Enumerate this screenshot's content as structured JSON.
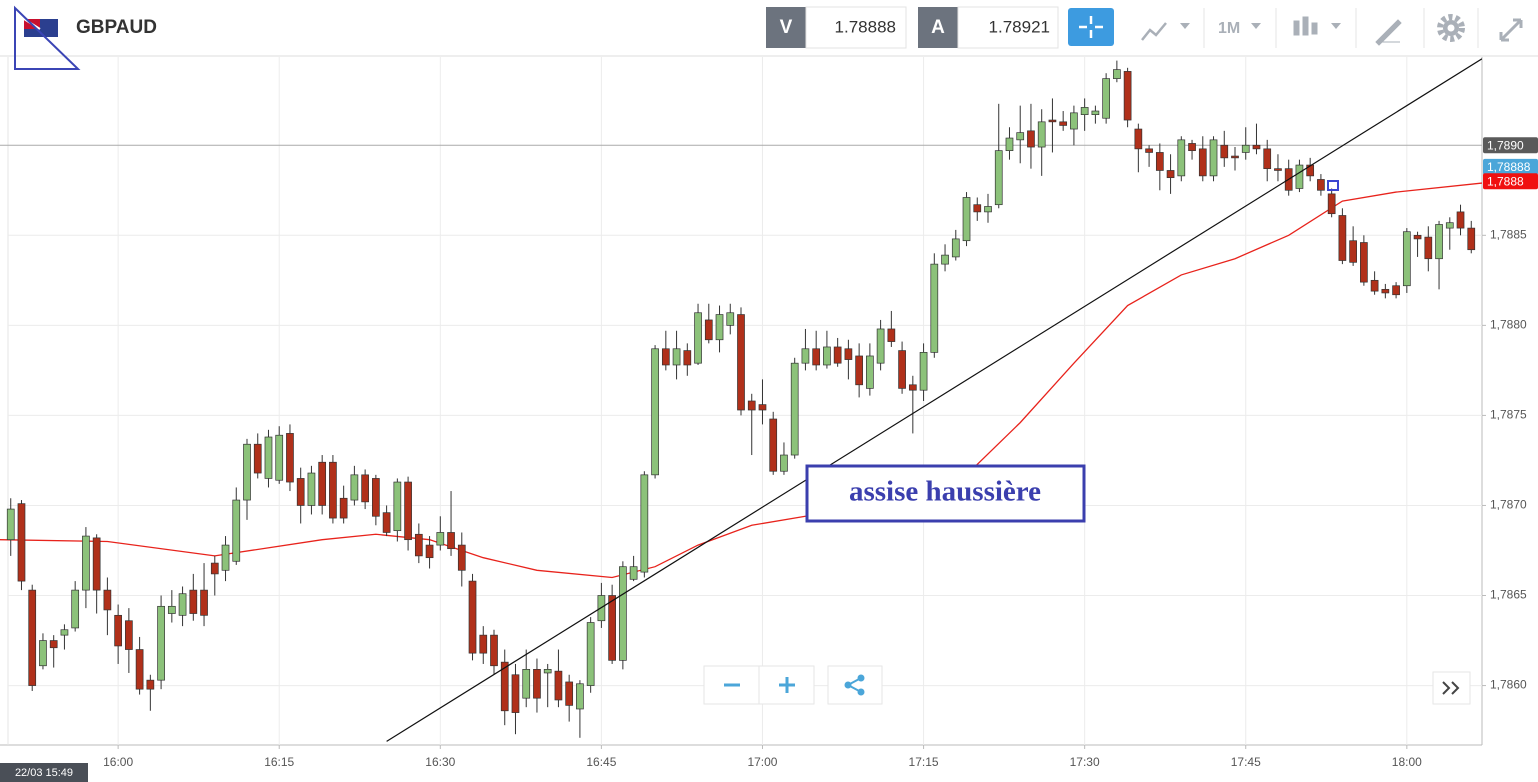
{
  "header": {
    "symbol": "GBPAUD",
    "bid_label": "V",
    "bid": "1.78888",
    "ask_label": "A",
    "ask": "1.78921",
    "timeframe": "1M"
  },
  "chart_data": {
    "type": "candlestick",
    "up_color": "#8cc27a",
    "down_color": "#b0301a",
    "x": [
      "15:50",
      "15:51",
      "15:52",
      "15:53",
      "15:54",
      "15:55",
      "15:56",
      "15:57",
      "15:58",
      "15:59",
      "16:00",
      "16:01",
      "16:02",
      "16:03",
      "16:04",
      "16:05",
      "16:06",
      "16:07",
      "16:08",
      "16:09",
      "16:10",
      "16:11",
      "16:12",
      "16:13",
      "16:14",
      "16:15",
      "16:16",
      "16:17",
      "16:18",
      "16:19",
      "16:20",
      "16:21",
      "16:22",
      "16:23",
      "16:24",
      "16:25",
      "16:26",
      "16:27",
      "16:28",
      "16:29",
      "16:30",
      "16:31",
      "16:32",
      "16:33",
      "16:34",
      "16:35",
      "16:36",
      "16:37",
      "16:38",
      "16:39",
      "16:40",
      "16:41",
      "16:42",
      "16:43",
      "16:44",
      "16:45",
      "16:46",
      "16:47",
      "16:48",
      "16:49",
      "16:50",
      "16:51",
      "16:52",
      "16:53",
      "16:54",
      "16:55",
      "16:56",
      "16:57",
      "16:58",
      "16:59",
      "17:00",
      "17:01",
      "17:02",
      "17:03",
      "17:04",
      "17:05",
      "17:06",
      "17:07",
      "17:08",
      "17:09",
      "17:10",
      "17:11",
      "17:12",
      "17:13",
      "17:14",
      "17:15",
      "17:16",
      "17:17",
      "17:18",
      "17:19",
      "17:20",
      "17:21",
      "17:22",
      "17:23",
      "17:24",
      "17:25",
      "17:26",
      "17:27",
      "17:28",
      "17:29",
      "17:30",
      "17:31",
      "17:32",
      "17:33",
      "17:34",
      "17:35",
      "17:36",
      "17:37",
      "17:38",
      "17:39",
      "17:40",
      "17:41",
      "17:42",
      "17:43",
      "17:44",
      "17:45",
      "17:46",
      "17:47",
      "17:48",
      "17:49",
      "17:50",
      "17:51",
      "17:52",
      "17:53",
      "17:54",
      "17:55",
      "17:56",
      "17:57",
      "17:58",
      "17:59",
      "18:00",
      "18:01",
      "18:02",
      "18:03",
      "18:04",
      "18:05",
      "18:06"
    ],
    "open": [
      1.78681,
      1.78701,
      1.78653,
      1.78611,
      1.78625,
      1.78628,
      1.78632,
      1.78653,
      1.78682,
      1.78653,
      1.78639,
      1.78636,
      1.7862,
      1.78603,
      1.78603,
      1.7864,
      1.78639,
      1.78653,
      1.78653,
      1.78668,
      1.78664,
      1.78669,
      1.78703,
      1.78734,
      1.78715,
      1.78714,
      1.7874,
      1.78715,
      1.787,
      1.78724,
      1.78724,
      1.78704,
      1.78703,
      1.78717,
      1.78715,
      1.78696,
      1.78686,
      1.78713,
      1.78684,
      1.78678,
      1.78678,
      1.78685,
      1.78678,
      1.78658,
      1.78628,
      1.78628,
      1.78613,
      1.78606,
      1.78593,
      1.78609,
      1.78607,
      1.78608,
      1.78602,
      1.78587,
      1.786,
      1.78636,
      1.7865,
      1.78614,
      1.78659,
      1.78663,
      1.78717,
      1.78787,
      1.78778,
      1.78786,
      1.78779,
      1.78803,
      1.78792,
      1.788,
      1.78806,
      1.78758,
      1.78756,
      1.78748,
      1.78719,
      1.78728,
      1.78779,
      1.78787,
      1.78778,
      1.78788,
      1.78787,
      1.78783,
      1.78765,
      1.78779,
      1.78798,
      1.78786,
      1.78767,
      1.78764,
      1.78785,
      1.78834,
      1.78838,
      1.78847,
      1.78867,
      1.78863,
      1.78867,
      1.78897,
      1.78903,
      1.78908,
      1.78899,
      1.78914,
      1.78913,
      1.78909,
      1.78917,
      1.78917,
      1.78915,
      1.78937,
      1.78941,
      1.78909,
      1.78898,
      1.78896,
      1.78886,
      1.78883,
      1.78901,
      1.78898,
      1.78883,
      1.789,
      1.78894,
      1.78896,
      1.789,
      1.78898,
      1.78887,
      1.78887,
      1.78876,
      1.78889,
      1.78881,
      1.78873,
      1.78861,
      1.78847,
      1.78846,
      1.78825,
      1.7882,
      1.78822,
      1.78822,
      1.7885,
      1.78849,
      1.78837,
      1.78854,
      1.78863,
      1.78854
    ],
    "high": [
      1.78704,
      1.78703,
      1.78656,
      1.78629,
      1.78628,
      1.78634,
      1.78658,
      1.78688,
      1.78684,
      1.7866,
      1.78645,
      1.78643,
      1.78627,
      1.78606,
      1.7865,
      1.78653,
      1.78655,
      1.78662,
      1.78668,
      1.78672,
      1.78683,
      1.7871,
      1.78737,
      1.7874,
      1.78742,
      1.78744,
      1.78745,
      1.78721,
      1.78722,
      1.78728,
      1.78728,
      1.78711,
      1.78722,
      1.7872,
      1.78717,
      1.787,
      1.78715,
      1.78716,
      1.7869,
      1.78683,
      1.78694,
      1.78708,
      1.78685,
      1.78662,
      1.78633,
      1.78631,
      1.7862,
      1.78612,
      1.7862,
      1.78615,
      1.78612,
      1.7862,
      1.78606,
      1.78603,
      1.78638,
      1.78657,
      1.78656,
      1.78669,
      1.78672,
      1.78719,
      1.78789,
      1.78797,
      1.78797,
      1.7879,
      1.78812,
      1.78812,
      1.78811,
      1.78812,
      1.7881,
      1.78762,
      1.7877,
      1.78752,
      1.78735,
      1.78782,
      1.78798,
      1.78797,
      1.78797,
      1.78793,
      1.78792,
      1.7879,
      1.7879,
      1.78803,
      1.78808,
      1.78791,
      1.78772,
      1.7879,
      1.7884,
      1.78845,
      1.78853,
      1.78874,
      1.78871,
      1.78873,
      1.78923,
      1.7891,
      1.78922,
      1.78923,
      1.7892,
      1.78926,
      1.78919,
      1.78922,
      1.78926,
      1.78922,
      1.7894,
      1.78947,
      1.78943,
      1.78912,
      1.789,
      1.78901,
      1.78895,
      1.78905,
      1.78903,
      1.78905,
      1.78905,
      1.78908,
      1.78899,
      1.7891,
      1.78912,
      1.78903,
      1.78895,
      1.78892,
      1.78892,
      1.78893,
      1.78884,
      1.78876,
      1.78865,
      1.78855,
      1.7885,
      1.7883,
      1.78823,
      1.78824,
      1.78854,
      1.78852,
      1.78855,
      1.78858,
      1.7886,
      1.78867,
      1.78858
    ],
    "low": [
      1.78672,
      1.78653,
      1.78597,
      1.78609,
      1.7861,
      1.7862,
      1.7863,
      1.78643,
      1.7864,
      1.78628,
      1.78612,
      1.78607,
      1.78595,
      1.78586,
      1.78598,
      1.78635,
      1.78633,
      1.78636,
      1.78633,
      1.7865,
      1.78658,
      1.78667,
      1.78692,
      1.78715,
      1.7871,
      1.78712,
      1.78708,
      1.7869,
      1.78695,
      1.78695,
      1.7869,
      1.7869,
      1.787,
      1.78698,
      1.78689,
      1.78683,
      1.7868,
      1.78675,
      1.78668,
      1.78665,
      1.78675,
      1.78672,
      1.78655,
      1.78614,
      1.78612,
      1.78606,
      1.78578,
      1.78573,
      1.78588,
      1.78585,
      1.78588,
      1.78588,
      1.7858,
      1.78571,
      1.78596,
      1.78632,
      1.78612,
      1.78609,
      1.78658,
      1.7866,
      1.78715,
      1.78775,
      1.7877,
      1.78772,
      1.78778,
      1.7879,
      1.78785,
      1.78795,
      1.7875,
      1.78728,
      1.78745,
      1.78717,
      1.78717,
      1.78726,
      1.78775,
      1.78775,
      1.78776,
      1.78777,
      1.7877,
      1.7876,
      1.78761,
      1.78775,
      1.78788,
      1.78762,
      1.7874,
      1.78758,
      1.78782,
      1.7883,
      1.78836,
      1.78844,
      1.78858,
      1.78857,
      1.78865,
      1.78892,
      1.7889,
      1.78887,
      1.78883,
      1.78896,
      1.78908,
      1.789,
      1.78908,
      1.78912,
      1.78912,
      1.78935,
      1.7891,
      1.78885,
      1.78888,
      1.78875,
      1.78873,
      1.7888,
      1.78892,
      1.7888,
      1.7888,
      1.78888,
      1.78886,
      1.78892,
      1.78895,
      1.7888,
      1.7888,
      1.78872,
      1.78874,
      1.7888,
      1.78872,
      1.7886,
      1.78834,
      1.78833,
      1.78822,
      1.78817,
      1.78815,
      1.78815,
      1.78818,
      1.78838,
      1.7883,
      1.7882,
      1.78842,
      1.7885,
      1.7884
    ],
    "close": [
      1.78698,
      1.78658,
      1.786,
      1.78625,
      1.78621,
      1.78631,
      1.78653,
      1.78683,
      1.78653,
      1.78642,
      1.78622,
      1.7862,
      1.78598,
      1.78598,
      1.78644,
      1.78644,
      1.78651,
      1.7864,
      1.78639,
      1.78662,
      1.78678,
      1.78703,
      1.78734,
      1.78718,
      1.78738,
      1.78739,
      1.78713,
      1.787,
      1.78718,
      1.787,
      1.78693,
      1.78693,
      1.78717,
      1.78702,
      1.78694,
      1.78685,
      1.78713,
      1.78681,
      1.78672,
      1.78671,
      1.78685,
      1.78676,
      1.78664,
      1.78618,
      1.78618,
      1.78611,
      1.78586,
      1.78585,
      1.78609,
      1.78593,
      1.78609,
      1.78592,
      1.78589,
      1.78601,
      1.78635,
      1.7865,
      1.78614,
      1.78666,
      1.78666,
      1.78717,
      1.78787,
      1.78778,
      1.78787,
      1.78778,
      1.78807,
      1.78792,
      1.78806,
      1.78807,
      1.78753,
      1.78753,
      1.78753,
      1.78719,
      1.78728,
      1.78779,
      1.78787,
      1.78778,
      1.78788,
      1.78779,
      1.78781,
      1.78767,
      1.78783,
      1.78798,
      1.78791,
      1.78765,
      1.78764,
      1.78785,
      1.78834,
      1.78839,
      1.78848,
      1.78871,
      1.78863,
      1.78866,
      1.78897,
      1.78904,
      1.78907,
      1.78899,
      1.78913,
      1.78913,
      1.78911,
      1.78918,
      1.78921,
      1.78919,
      1.78937,
      1.78942,
      1.78914,
      1.78898,
      1.78896,
      1.78886,
      1.78882,
      1.78903,
      1.78897,
      1.78883,
      1.78903,
      1.78893,
      1.78893,
      1.789,
      1.78898,
      1.78887,
      1.78886,
      1.78875,
      1.78889,
      1.78883,
      1.78875,
      1.78862,
      1.78836,
      1.78835,
      1.78824,
      1.78819,
      1.78818,
      1.78817,
      1.78852,
      1.78848,
      1.78837,
      1.78856,
      1.78857,
      1.78854,
      1.78842
    ],
    "moving_average": {
      "color": "#e8231c",
      "x": [
        "15:49",
        "15:59",
        "16:09",
        "16:19",
        "16:24",
        "16:29",
        "16:34",
        "16:39",
        "16:46",
        "16:50",
        "16:54",
        "16:59",
        "17:04",
        "17:09",
        "17:14",
        "17:19",
        "17:24",
        "17:29",
        "17:34",
        "17:39",
        "17:44",
        "17:49",
        "17:54",
        "17:59",
        "18:07"
      ],
      "values": [
        1.78681,
        1.7868,
        1.78672,
        1.78681,
        1.78684,
        1.78681,
        1.78671,
        1.78664,
        1.7866,
        1.78666,
        1.78678,
        1.78689,
        1.78694,
        1.78698,
        1.78703,
        1.78717,
        1.78746,
        1.78779,
        1.78811,
        1.78828,
        1.78837,
        1.7885,
        1.78869,
        1.78874,
        1.78879
      ]
    },
    "trendline": {
      "color": "#111111",
      "x": [
        "16:25",
        "18:07"
      ],
      "values": [
        1.78569,
        1.78948
      ]
    },
    "annotation": "assise haussière",
    "xlim": [
      "15:49",
      "18:07"
    ],
    "xticks": [
      "16:00",
      "16:15",
      "16:30",
      "16:45",
      "17:00",
      "17:15",
      "17:30",
      "17:45",
      "18:00"
    ],
    "ylim": [
      1.78567,
      1.78949
    ],
    "yticks": [
      {
        "value": 1.786,
        "label": "1,7860"
      },
      {
        "value": 1.7865,
        "label": "1,7865"
      },
      {
        "value": 1.787,
        "label": "1,7870"
      },
      {
        "value": 1.7875,
        "label": "1,7875"
      },
      {
        "value": 1.788,
        "label": "1,7880"
      },
      {
        "value": 1.7885,
        "label": "1,7885"
      }
    ],
    "grid": true,
    "price_labels": [
      {
        "value": 1.789,
        "label": "1,7890",
        "color": "#5a5a5a"
      },
      {
        "value": 1.78888,
        "label": "1,78888",
        "color": "#4ba6d9"
      },
      {
        "value": 1.7888,
        "label": "1,7888",
        "color": "#f01010"
      }
    ],
    "cursor_time_label": "22/03 15:49"
  }
}
